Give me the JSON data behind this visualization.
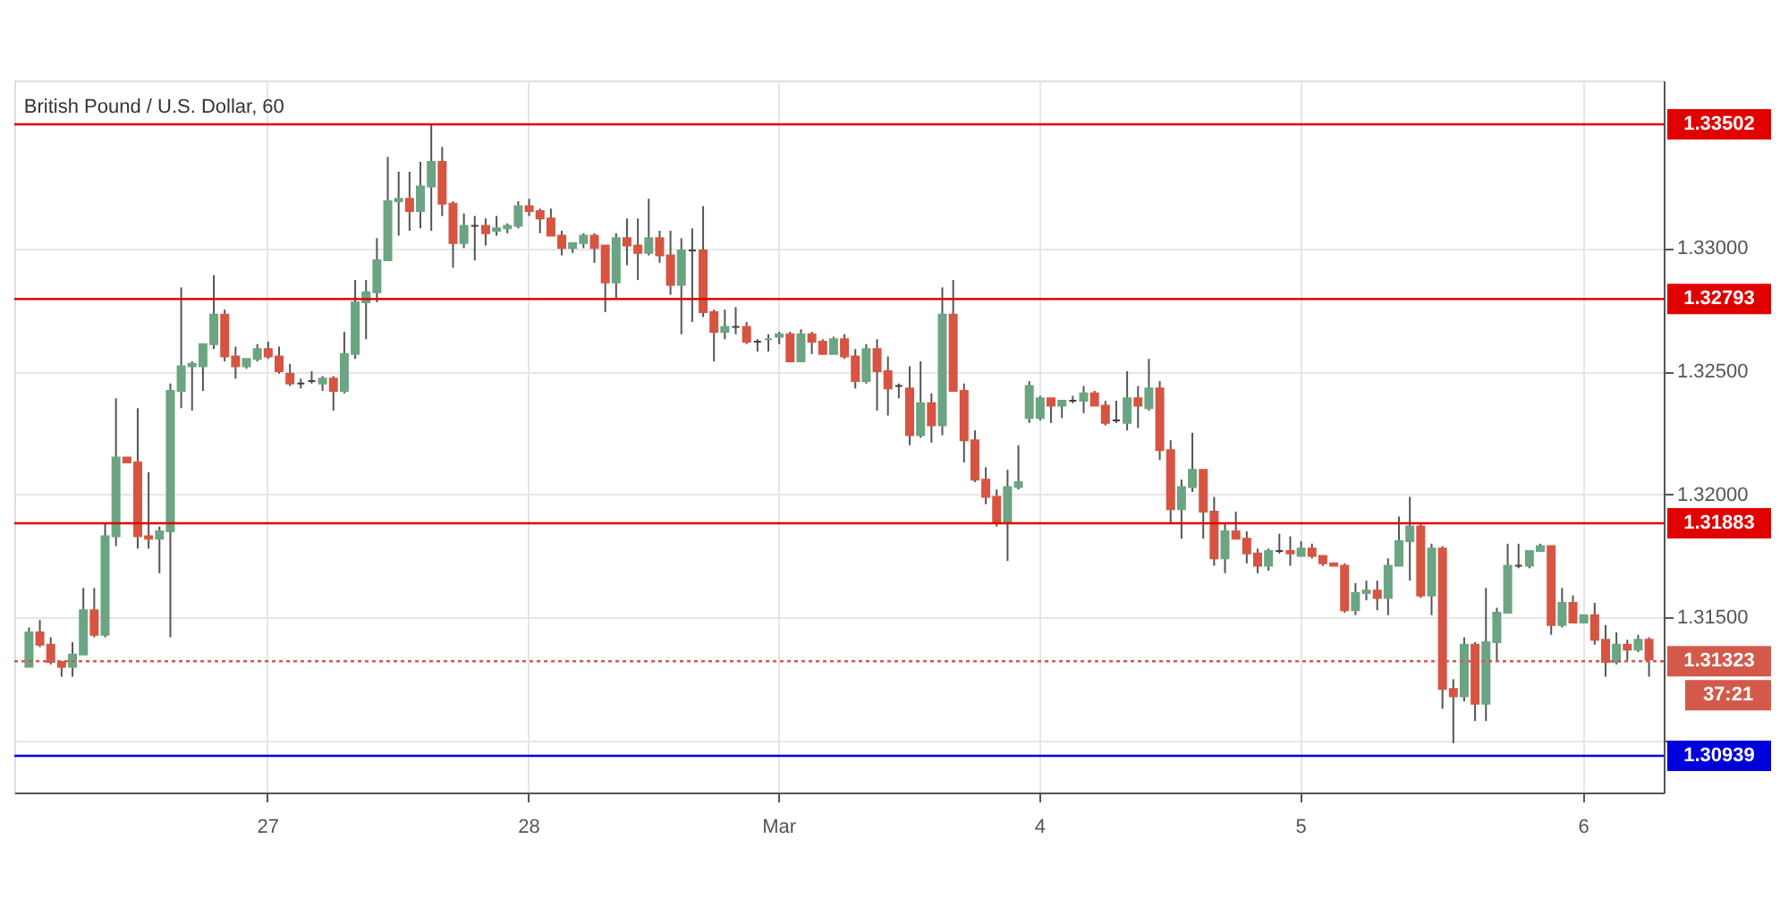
{
  "chart_data": {
    "type": "candlestick",
    "title": "British Pound / U.S. Dollar, 60",
    "categories": [
      null,
      null,
      null,
      null,
      null,
      null,
      null,
      null,
      null,
      null,
      null,
      null,
      null,
      null,
      null,
      null,
      null,
      null,
      null,
      null,
      null,
      null,
      "27",
      null,
      null,
      null,
      null,
      null,
      null,
      null,
      null,
      null,
      null,
      null,
      null,
      null,
      null,
      null,
      null,
      null,
      null,
      null,
      null,
      null,
      null,
      null,
      "28",
      null,
      null,
      null,
      null,
      null,
      null,
      null,
      null,
      null,
      null,
      null,
      null,
      null,
      null,
      null,
      null,
      null,
      null,
      null,
      null,
      null,
      null,
      "Mar",
      null,
      null,
      null,
      null,
      null,
      null,
      null,
      null,
      null,
      null,
      null,
      null,
      null,
      null,
      null,
      null,
      null,
      null,
      null,
      null,
      null,
      null,
      null,
      "4",
      null,
      null,
      null,
      null,
      null,
      null,
      null,
      null,
      null,
      null,
      null,
      null,
      null,
      null,
      null,
      null,
      null,
      null,
      null,
      null,
      null,
      null,
      null,
      "5",
      null,
      null,
      null,
      null,
      null,
      null,
      null,
      null,
      null,
      null,
      null,
      null,
      null,
      null,
      null,
      null,
      null,
      null,
      null,
      null,
      null,
      null,
      null,
      null,
      null,
      "6",
      null,
      null,
      null,
      null,
      null,
      null
    ],
    "ohlc": [
      [
        1.313,
        1.3146,
        1.313,
        1.3144
      ],
      [
        1.3144,
        1.3149,
        1.3138,
        1.3139
      ],
      [
        1.3139,
        1.3142,
        1.3131,
        1.3132
      ],
      [
        1.3132,
        1.3132,
        1.3126,
        1.313
      ],
      [
        1.313,
        1.314,
        1.3126,
        1.3135
      ],
      [
        1.3135,
        1.3162,
        1.3135,
        1.3153
      ],
      [
        1.3153,
        1.3162,
        1.3142,
        1.3143
      ],
      [
        1.3143,
        1.3188,
        1.3142,
        1.3183
      ],
      [
        1.3183,
        1.3239,
        1.3179,
        1.3215
      ],
      [
        1.3215,
        1.3215,
        1.3213,
        1.3213
      ],
      [
        1.3213,
        1.3235,
        1.3178,
        1.3183
      ],
      [
        1.3183,
        1.3209,
        1.3178,
        1.3182
      ],
      [
        1.3182,
        1.3187,
        1.3168,
        1.3185
      ],
      [
        1.3185,
        1.3245,
        1.3142,
        1.3242
      ],
      [
        1.3242,
        1.3284,
        1.3235,
        1.3252
      ],
      [
        1.3252,
        1.3254,
        1.3234,
        1.3253
      ],
      [
        1.3252,
        1.3261,
        1.3242,
        1.3261
      ],
      [
        1.3261,
        1.3289,
        1.3259,
        1.3273
      ],
      [
        1.3273,
        1.3275,
        1.3254,
        1.3256
      ],
      [
        1.3256,
        1.326,
        1.3247,
        1.3252
      ],
      [
        1.3252,
        1.3255,
        1.3251,
        1.3255
      ],
      [
        1.3255,
        1.3261,
        1.3254,
        1.3259
      ],
      [
        1.3259,
        1.3262,
        1.3255,
        1.3256
      ],
      [
        1.3256,
        1.326,
        1.3249,
        1.325
      ],
      [
        1.3249,
        1.3253,
        1.3244,
        1.3245
      ],
      [
        1.3245,
        1.3247,
        1.3243,
        1.3245
      ],
      [
        1.3246,
        1.325,
        1.3245,
        1.3246
      ],
      [
        1.3245,
        1.3248,
        1.3242,
        1.3247
      ],
      [
        1.3247,
        1.3248,
        1.3234,
        1.3242
      ],
      [
        1.3242,
        1.3266,
        1.3241,
        1.3257
      ],
      [
        1.3257,
        1.3287,
        1.3255,
        1.3278
      ],
      [
        1.3278,
        1.3287,
        1.3263,
        1.3282
      ],
      [
        1.3282,
        1.3304,
        1.3278,
        1.3295
      ],
      [
        1.3295,
        1.3337,
        1.3295,
        1.3319
      ],
      [
        1.3319,
        1.3331,
        1.3305,
        1.332
      ],
      [
        1.332,
        1.3331,
        1.3307,
        1.3315
      ],
      [
        1.3315,
        1.3335,
        1.3308,
        1.3325
      ],
      [
        1.3325,
        1.335,
        1.3307,
        1.3335
      ],
      [
        1.3335,
        1.3341,
        1.3313,
        1.3318
      ],
      [
        1.3318,
        1.3319,
        1.3292,
        1.3302
      ],
      [
        1.3302,
        1.3314,
        1.33,
        1.3309
      ],
      [
        1.3309,
        1.3313,
        1.3295,
        1.3309
      ],
      [
        1.3309,
        1.3312,
        1.3301,
        1.3306
      ],
      [
        1.3307,
        1.3313,
        1.3305,
        1.3308
      ],
      [
        1.3308,
        1.331,
        1.3306,
        1.3309
      ],
      [
        1.3309,
        1.3319,
        1.3308,
        1.3317
      ],
      [
        1.3317,
        1.332,
        1.3313,
        1.3315
      ],
      [
        1.3315,
        1.3316,
        1.3306,
        1.3312
      ],
      [
        1.3312,
        1.3316,
        1.3305,
        1.3305
      ],
      [
        1.3305,
        1.3307,
        1.3297,
        1.33
      ],
      [
        1.33,
        1.3302,
        1.3298,
        1.3302
      ],
      [
        1.3302,
        1.3306,
        1.33,
        1.3305
      ],
      [
        1.3305,
        1.3306,
        1.3294,
        1.33
      ],
      [
        1.3301,
        1.3301,
        1.3274,
        1.3286
      ],
      [
        1.3286,
        1.3306,
        1.3279,
        1.3304
      ],
      [
        1.3304,
        1.3312,
        1.3293,
        1.3301
      ],
      [
        1.3301,
        1.3312,
        1.3287,
        1.3298
      ],
      [
        1.3298,
        1.332,
        1.3297,
        1.3304
      ],
      [
        1.3304,
        1.3307,
        1.3294,
        1.3297
      ],
      [
        1.3297,
        1.3307,
        1.3281,
        1.3285
      ],
      [
        1.3285,
        1.3304,
        1.3265,
        1.3299
      ],
      [
        1.3299,
        1.3308,
        1.327,
        1.3299
      ],
      [
        1.3299,
        1.3317,
        1.3272,
        1.3274
      ],
      [
        1.3274,
        1.3275,
        1.3254,
        1.3266
      ],
      [
        1.3266,
        1.3275,
        1.3263,
        1.3268
      ],
      [
        1.3268,
        1.3276,
        1.3265,
        1.3268
      ],
      [
        1.3268,
        1.327,
        1.3261,
        1.3262
      ],
      [
        1.3262,
        1.3263,
        1.3258,
        1.3262
      ],
      [
        1.3263,
        1.3265,
        1.3258,
        1.3263
      ],
      [
        1.3264,
        1.3266,
        1.3261,
        1.3265
      ],
      [
        1.3265,
        1.3266,
        1.3254,
        1.3254
      ],
      [
        1.3254,
        1.3267,
        1.3254,
        1.3265
      ],
      [
        1.3265,
        1.3266,
        1.3257,
        1.3262
      ],
      [
        1.3262,
        1.3263,
        1.3257,
        1.3257
      ],
      [
        1.3257,
        1.3264,
        1.3257,
        1.3263
      ],
      [
        1.3263,
        1.3265,
        1.3255,
        1.3256
      ],
      [
        1.3256,
        1.3259,
        1.3243,
        1.3246
      ],
      [
        1.3246,
        1.3261,
        1.3245,
        1.3259
      ],
      [
        1.3259,
        1.3263,
        1.3234,
        1.325
      ],
      [
        1.325,
        1.3256,
        1.3232,
        1.3243
      ],
      [
        1.3244,
        1.3245,
        1.3239,
        1.3244
      ],
      [
        1.3243,
        1.3252,
        1.322,
        1.3224
      ],
      [
        1.3224,
        1.3254,
        1.3223,
        1.3237
      ],
      [
        1.3237,
        1.3241,
        1.3221,
        1.3228
      ],
      [
        1.3228,
        1.3284,
        1.3224,
        1.3273
      ],
      [
        1.3273,
        1.3287,
        1.3242,
        1.3242
      ],
      [
        1.3242,
        1.3245,
        1.3213,
        1.3222
      ],
      [
        1.3222,
        1.3226,
        1.3205,
        1.3206
      ],
      [
        1.3206,
        1.3211,
        1.3196,
        1.3199
      ],
      [
        1.3199,
        1.3202,
        1.3187,
        1.3189
      ],
      [
        1.3189,
        1.321,
        1.3173,
        1.3203
      ],
      [
        1.3203,
        1.322,
        1.3202,
        1.3205
      ],
      [
        1.3231,
        1.3246,
        1.3229,
        1.3244
      ],
      [
        1.3231,
        1.324,
        1.323,
        1.3239
      ],
      [
        1.3239,
        1.3239,
        1.3229,
        1.3236
      ],
      [
        1.3236,
        1.3238,
        1.3231,
        1.3238
      ],
      [
        1.3238,
        1.324,
        1.3237,
        1.3238
      ],
      [
        1.3238,
        1.3244,
        1.3233,
        1.3241
      ],
      [
        1.3241,
        1.3242,
        1.3236,
        1.3236
      ],
      [
        1.3236,
        1.3238,
        1.3228,
        1.3229
      ],
      [
        1.323,
        1.3238,
        1.3229,
        1.323
      ],
      [
        1.3229,
        1.325,
        1.3226,
        1.3239
      ],
      [
        1.3239,
        1.3244,
        1.3227,
        1.3236
      ],
      [
        1.3235,
        1.3255,
        1.3234,
        1.3243
      ],
      [
        1.3243,
        1.3246,
        1.3214,
        1.3218
      ],
      [
        1.3218,
        1.3222,
        1.3188,
        1.3194
      ],
      [
        1.3194,
        1.3206,
        1.3182,
        1.3203
      ],
      [
        1.3203,
        1.3225,
        1.3201,
        1.321
      ],
      [
        1.321,
        1.321,
        1.3182,
        1.3193
      ],
      [
        1.3193,
        1.3199,
        1.3171,
        1.3174
      ],
      [
        1.3174,
        1.3188,
        1.3168,
        1.3185
      ],
      [
        1.3185,
        1.3193,
        1.3182,
        1.3182
      ],
      [
        1.3182,
        1.3185,
        1.3172,
        1.3176
      ],
      [
        1.3176,
        1.3178,
        1.3168,
        1.3171
      ],
      [
        1.3171,
        1.3178,
        1.3169,
        1.3177
      ],
      [
        1.3177,
        1.3184,
        1.3176,
        1.3177
      ],
      [
        1.3177,
        1.3183,
        1.3171,
        1.3176
      ],
      [
        1.3175,
        1.3181,
        1.3175,
        1.3178
      ],
      [
        1.3178,
        1.318,
        1.3174,
        1.3175
      ],
      [
        1.3175,
        1.3175,
        1.3171,
        1.3172
      ],
      [
        1.3172,
        1.3172,
        1.3171,
        1.3171
      ],
      [
        1.3171,
        1.3172,
        1.3152,
        1.3153
      ],
      [
        1.3153,
        1.3164,
        1.3151,
        1.316
      ],
      [
        1.316,
        1.3165,
        1.3157,
        1.3161
      ],
      [
        1.3161,
        1.3165,
        1.3153,
        1.3158
      ],
      [
        1.3158,
        1.3174,
        1.3151,
        1.3171
      ],
      [
        1.3171,
        1.3191,
        1.3171,
        1.3181
      ],
      [
        1.3181,
        1.3199,
        1.3165,
        1.3187
      ],
      [
        1.3187,
        1.3188,
        1.3158,
        1.3159
      ],
      [
        1.3159,
        1.318,
        1.3151,
        1.3178
      ],
      [
        1.3178,
        1.3179,
        1.3113,
        1.3121
      ],
      [
        1.3121,
        1.3125,
        1.3099,
        1.3118
      ],
      [
        1.3118,
        1.3142,
        1.3116,
        1.3139
      ],
      [
        1.3139,
        1.314,
        1.3108,
        1.3115
      ],
      [
        1.3115,
        1.3162,
        1.3108,
        1.314
      ],
      [
        1.314,
        1.3154,
        1.3132,
        1.3152
      ],
      [
        1.3152,
        1.318,
        1.3152,
        1.3171
      ],
      [
        1.3171,
        1.318,
        1.317,
        1.3171
      ],
      [
        1.3171,
        1.3177,
        1.317,
        1.3177
      ],
      [
        1.3177,
        1.318,
        1.3177,
        1.3179
      ],
      [
        1.3179,
        1.3179,
        1.3143,
        1.3147
      ],
      [
        1.3147,
        1.3162,
        1.3146,
        1.3156
      ],
      [
        1.3156,
        1.3159,
        1.3148,
        1.3148
      ],
      [
        1.3148,
        1.3151,
        1.3148,
        1.3151
      ],
      [
        1.3151,
        1.3156,
        1.3139,
        1.3141
      ],
      [
        1.3141,
        1.3147,
        1.3126,
        1.3132
      ],
      [
        1.3132,
        1.3144,
        1.3131,
        1.3139
      ],
      [
        1.3139,
        1.3141,
        1.3132,
        1.3137
      ],
      [
        1.3137,
        1.3143,
        1.3136,
        1.3141
      ],
      [
        1.3141,
        1.3142,
        1.3126,
        1.3133
      ]
    ],
    "colors": [
      "#6ba583",
      "#d75442",
      "#d75442",
      "#d75442",
      "#6ba583",
      "#6ba583",
      "#d75442",
      "#6ba583",
      "#6ba583",
      "#d75442",
      "#d75442",
      "#d75442",
      "#6ba583",
      "#6ba583",
      "#6ba583",
      "#6ba583",
      "#6ba583",
      "#6ba583",
      "#d75442",
      "#d75442",
      "#6ba583",
      "#6ba583",
      "#d75442",
      "#d75442",
      "#d75442",
      "#404040",
      "#404040",
      "#6ba583",
      "#d75442",
      "#6ba583",
      "#6ba583",
      "#6ba583",
      "#6ba583",
      "#6ba583",
      "#6ba583",
      "#d75442",
      "#6ba583",
      "#6ba583",
      "#d75442",
      "#d75442",
      "#6ba583",
      "#404040",
      "#d75442",
      "#6ba583",
      "#6ba583",
      "#6ba583",
      "#d75442",
      "#d75442",
      "#d75442",
      "#d75442",
      "#6ba583",
      "#6ba583",
      "#d75442",
      "#d75442",
      "#6ba583",
      "#d75442",
      "#d75442",
      "#6ba583",
      "#d75442",
      "#d75442",
      "#6ba583",
      "#404040",
      "#d75442",
      "#d75442",
      "#6ba583",
      "#404040",
      "#d75442",
      "#404040",
      "#6ba583",
      "#6ba583",
      "#d75442",
      "#6ba583",
      "#d75442",
      "#d75442",
      "#6ba583",
      "#d75442",
      "#d75442",
      "#6ba583",
      "#d75442",
      "#d75442",
      "#404040",
      "#d75442",
      "#6ba583",
      "#d75442",
      "#6ba583",
      "#d75442",
      "#d75442",
      "#d75442",
      "#d75442",
      "#d75442",
      "#6ba583",
      "#6ba583",
      "#6ba583",
      "#6ba583",
      "#d75442",
      "#6ba583",
      "#404040",
      "#6ba583",
      "#d75442",
      "#d75442",
      "#404040",
      "#6ba583",
      "#d75442",
      "#6ba583",
      "#d75442",
      "#d75442",
      "#6ba583",
      "#6ba583",
      "#d75442",
      "#d75442",
      "#6ba583",
      "#d75442",
      "#d75442",
      "#d75442",
      "#6ba583",
      "#404040",
      "#d75442",
      "#6ba583",
      "#d75442",
      "#d75442",
      "#d75442",
      "#d75442",
      "#6ba583",
      "#6ba583",
      "#d75442",
      "#6ba583",
      "#6ba583",
      "#6ba583",
      "#d75442",
      "#6ba583",
      "#d75442",
      "#d75442",
      "#6ba583",
      "#d75442",
      "#6ba583",
      "#6ba583",
      "#6ba583",
      "#404040",
      "#6ba583",
      "#6ba583",
      "#d75442",
      "#6ba583",
      "#d75442",
      "#6ba583",
      "#d75442",
      "#d75442",
      "#6ba583",
      "#d75442",
      "#6ba583",
      "#d75442"
    ],
    "ylim": [
      1.3079,
      1.3368
    ],
    "yticks": [
      {
        "value": 1.31,
        "label": null
      },
      {
        "value": 1.315,
        "label": "1.31500"
      },
      {
        "value": 1.32,
        "label": "1.32000"
      },
      {
        "value": 1.325,
        "label": "1.32500"
      },
      {
        "value": 1.33,
        "label": "1.33000"
      }
    ],
    "ref_lines": [
      {
        "axis": "y",
        "value": 1.33502,
        "label": "1.33502",
        "color": "#e00000"
      },
      {
        "axis": "y",
        "value": 1.32793,
        "label": "1.32793",
        "color": "#e00000"
      },
      {
        "axis": "y",
        "value": 1.31883,
        "label": "1.31883",
        "color": "#e00000"
      },
      {
        "axis": "y",
        "value": 1.30939,
        "label": "1.30939",
        "color": "#0000dd"
      },
      {
        "axis": "y",
        "value": 1.31323,
        "label": "1.31323",
        "color": "#d35a4a",
        "line_style": "dotted"
      }
    ],
    "annotations": [
      "37:21"
    ],
    "grid": true
  }
}
